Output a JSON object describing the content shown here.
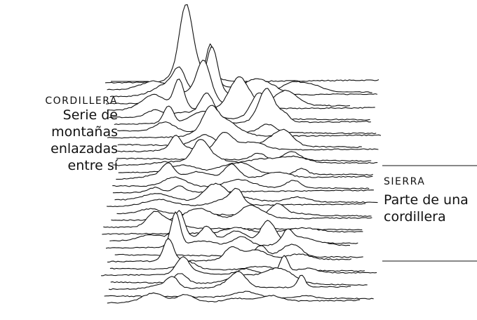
{
  "labels": {
    "cordillera": {
      "title": "CORDILLERA",
      "lines": [
        "Serie de",
        "montañas",
        "enlazadas",
        "entre sí"
      ]
    },
    "sierra": {
      "title": "SIERRA",
      "lines": [
        "Parte de una",
        "cordillera"
      ]
    }
  }
}
